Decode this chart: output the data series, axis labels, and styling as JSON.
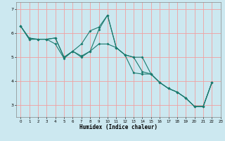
{
  "title": "",
  "xlabel": "Humidex (Indice chaleur)",
  "bg_color": "#cce8f0",
  "grid_color": "#f0a0a0",
  "line_color": "#1a7a6e",
  "xlim": [
    -0.5,
    23
  ],
  "ylim": [
    2.5,
    7.3
  ],
  "yticks": [
    3,
    4,
    5,
    6,
    7
  ],
  "xticks": [
    0,
    1,
    2,
    3,
    4,
    5,
    6,
    7,
    8,
    9,
    10,
    11,
    12,
    13,
    14,
    15,
    16,
    17,
    18,
    19,
    20,
    21,
    22,
    23
  ],
  "line1_x": [
    0,
    1,
    2,
    3,
    4,
    5,
    6,
    7,
    8,
    9,
    10,
    11,
    12,
    13,
    14,
    15,
    16,
    17,
    18,
    19,
    20,
    21,
    22
  ],
  "line1_y": [
    6.3,
    5.8,
    5.75,
    5.75,
    5.8,
    5.0,
    5.25,
    5.0,
    5.25,
    6.15,
    6.75,
    5.4,
    5.1,
    5.0,
    5.0,
    4.3,
    3.95,
    3.7,
    3.55,
    3.3,
    2.95,
    2.95,
    3.95
  ],
  "line2_x": [
    0,
    1,
    2,
    3,
    4,
    5,
    6,
    7,
    8,
    9,
    10,
    11,
    12,
    13,
    14,
    15,
    16,
    17,
    18,
    19,
    20,
    21,
    22
  ],
  "line2_y": [
    6.3,
    5.75,
    5.75,
    5.75,
    5.8,
    5.0,
    5.25,
    5.55,
    6.1,
    6.25,
    6.75,
    5.4,
    5.1,
    5.0,
    4.4,
    4.3,
    3.95,
    3.7,
    3.55,
    3.3,
    2.95,
    2.95,
    3.95
  ],
  "line3_x": [
    0,
    1,
    2,
    3,
    4,
    5,
    6,
    7,
    8,
    9,
    10,
    11,
    12,
    13,
    14,
    15,
    16,
    17,
    18,
    19,
    20,
    21,
    22
  ],
  "line3_y": [
    6.3,
    5.75,
    5.75,
    5.75,
    5.55,
    4.95,
    5.25,
    5.05,
    5.25,
    5.55,
    5.55,
    5.4,
    5.1,
    4.35,
    4.3,
    4.3,
    3.95,
    3.7,
    3.55,
    3.3,
    2.95,
    2.95,
    3.95
  ]
}
